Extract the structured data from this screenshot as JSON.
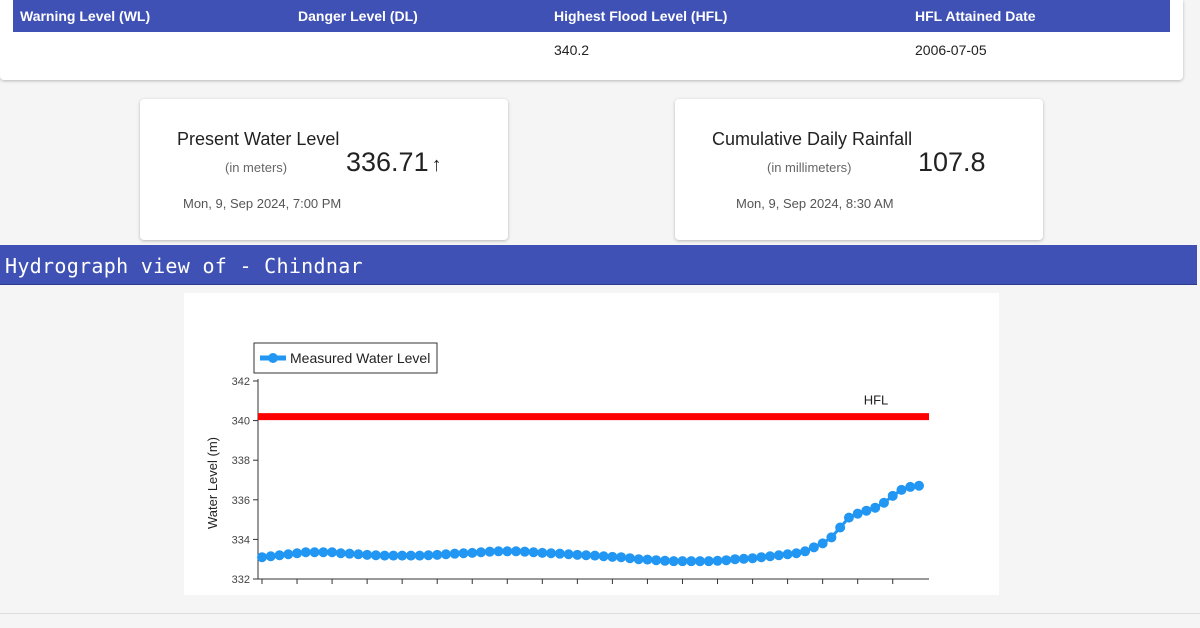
{
  "levels": {
    "headers": [
      "Warning Level (WL)",
      "Danger Level (DL)",
      "Highest Flood Level (HFL)",
      "HFL Attained Date"
    ],
    "values": [
      "",
      "",
      "340.2",
      "2006-07-05"
    ]
  },
  "present_water_level": {
    "title": "Present Water Level",
    "unit": "(in meters)",
    "value": "336.71",
    "trend_symbol": "↑",
    "timestamp": "Mon, 9, Sep 2024, 7:00 PM"
  },
  "rainfall": {
    "title": "Cumulative Daily Rainfall",
    "unit": "(in millimeters)",
    "value": "107.8",
    "timestamp": "Mon, 9, Sep 2024, 8:30 AM"
  },
  "hydrograph": {
    "title": "Hydrograph view of - Chindnar"
  },
  "colors": {
    "header_blue": "#3f51b5",
    "series": "#2196f3",
    "hfl": "#ff0000"
  },
  "chart_data": {
    "type": "line",
    "ylabel": "Water Level (m)",
    "ylim": [
      332,
      342
    ],
    "yticks": [
      332,
      334,
      336,
      338,
      340,
      342
    ],
    "legend_position": "top-left",
    "series": [
      {
        "name": "Measured Water Level",
        "values": [
          333.1,
          333.15,
          333.2,
          333.25,
          333.3,
          333.35,
          333.35,
          333.35,
          333.35,
          333.3,
          333.28,
          333.25,
          333.22,
          333.2,
          333.18,
          333.18,
          333.18,
          333.18,
          333.18,
          333.2,
          333.22,
          333.25,
          333.28,
          333.3,
          333.32,
          333.35,
          333.38,
          333.4,
          333.4,
          333.4,
          333.38,
          333.35,
          333.32,
          333.3,
          333.28,
          333.25,
          333.22,
          333.2,
          333.18,
          333.15,
          333.12,
          333.1,
          333.05,
          333.0,
          332.98,
          332.95,
          332.92,
          332.9,
          332.9,
          332.9,
          332.9,
          332.9,
          332.92,
          332.95,
          333.0,
          333.02,
          333.05,
          333.1,
          333.15,
          333.2,
          333.25,
          333.3,
          333.4,
          333.6,
          333.8,
          334.1,
          334.6,
          335.1,
          335.3,
          335.45,
          335.6,
          335.85,
          336.2,
          336.5,
          336.65,
          336.71
        ]
      }
    ],
    "reference_lines": [
      {
        "name": "HFL",
        "value": 340.2
      }
    ]
  }
}
